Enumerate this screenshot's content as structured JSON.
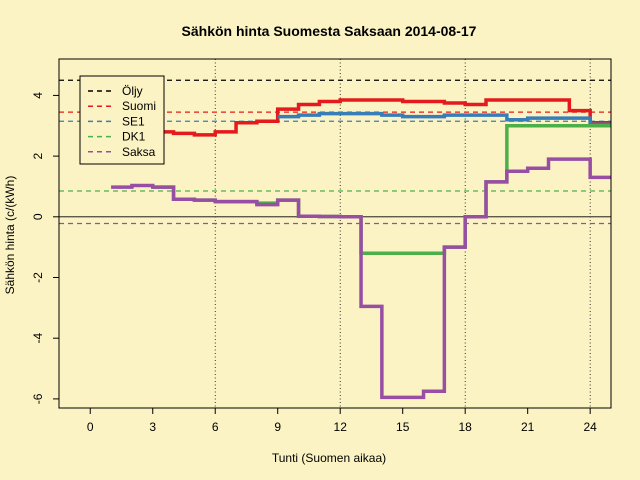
{
  "chart_data": {
    "type": "line",
    "title": "Sähkön hinta Suomesta Saksaan 2014-08-17",
    "xlabel": "Tunti (Suomen aikaa)",
    "ylabel": "Sähkön hinta (c/(kWh)",
    "xlim": [
      -1.5,
      25
    ],
    "ylim": [
      -6.3,
      5.2
    ],
    "xticks": [
      0,
      3,
      6,
      9,
      12,
      15,
      18,
      21,
      24
    ],
    "yticks": [
      -6,
      -4,
      -2,
      0,
      2,
      4
    ],
    "vlines": [
      6,
      12,
      18,
      24
    ],
    "zero_line": 0,
    "legend_position": "top-left",
    "series": [
      {
        "name": "Suomi",
        "color": "#E41A1C",
        "x": [
          1,
          2,
          3,
          4,
          5,
          6,
          7,
          8,
          9,
          10,
          11,
          12,
          13,
          14,
          15,
          16,
          17,
          18,
          19,
          20,
          21,
          22,
          23,
          24,
          25
        ],
        "values": [
          3.4,
          3.2,
          2.8,
          2.75,
          2.7,
          2.8,
          3.1,
          3.15,
          3.55,
          3.7,
          3.8,
          3.85,
          3.85,
          3.85,
          3.8,
          3.8,
          3.75,
          3.7,
          3.85,
          3.85,
          3.85,
          3.85,
          3.5,
          3.1,
          3.1
        ]
      },
      {
        "name": "SE1",
        "color": "#377EB8",
        "x": [
          1,
          2,
          3,
          4,
          5,
          6,
          7,
          8,
          9,
          10,
          11,
          12,
          13,
          14,
          15,
          16,
          17,
          18,
          19,
          20,
          21,
          22,
          23,
          24,
          25
        ],
        "values": [
          null,
          null,
          null,
          null,
          null,
          null,
          null,
          null,
          3.3,
          3.35,
          3.4,
          3.4,
          3.4,
          3.35,
          3.3,
          3.3,
          3.35,
          3.35,
          3.35,
          3.2,
          3.25,
          3.25,
          3.25,
          3.05,
          3.05
        ]
      },
      {
        "name": "DK1",
        "color": "#4DAF4A",
        "x": [
          1,
          2,
          3,
          4,
          5,
          6,
          7,
          8,
          9,
          10,
          11,
          12,
          13,
          14,
          15,
          16,
          17,
          18,
          19,
          20,
          21,
          22,
          23,
          24,
          25
        ],
        "values": [
          null,
          null,
          0.98,
          0.58,
          0.55,
          0.5,
          0.5,
          0.45,
          0.55,
          0.02,
          0.01,
          0.0,
          -1.2,
          -1.2,
          -1.2,
          -1.2,
          -1.0,
          0.0,
          1.15,
          3.0,
          3.0,
          3.0,
          3.0,
          3.0,
          3.0
        ]
      },
      {
        "name": "Saksa",
        "color": "#984EA3",
        "x": [
          1,
          2,
          3,
          4,
          5,
          6,
          7,
          8,
          9,
          10,
          11,
          12,
          13,
          14,
          15,
          16,
          17,
          18,
          19,
          20,
          21,
          22,
          23,
          24,
          25
        ],
        "values": [
          0.98,
          1.03,
          0.98,
          0.58,
          0.55,
          0.5,
          0.5,
          0.4,
          0.55,
          0.02,
          0.01,
          0.0,
          -2.95,
          -5.95,
          -5.95,
          -5.75,
          -1.0,
          0.0,
          1.15,
          1.5,
          1.6,
          1.9,
          1.9,
          1.3,
          1.3
        ]
      }
    ],
    "reference_lines": [
      {
        "name": "Öljy",
        "value": 4.5,
        "color": "#000000"
      },
      {
        "name": "Suomi",
        "value": 3.45,
        "color": "#E41A1C"
      },
      {
        "name": "SE1",
        "value": 3.15,
        "color": "#377EB8"
      },
      {
        "name": "DK1",
        "value": 0.85,
        "color": "#4DAF4A"
      },
      {
        "name": "Saksa",
        "value": -0.22,
        "color": "#984EA3"
      }
    ],
    "legend": [
      {
        "label": "Öljy",
        "color": "#000000"
      },
      {
        "label": "Suomi",
        "color": "#E41A1C"
      },
      {
        "label": "SE1",
        "color": "#377EB8"
      },
      {
        "label": "DK1",
        "color": "#4DAF4A"
      },
      {
        "label": "Saksa",
        "color": "#984EA3"
      }
    ]
  }
}
